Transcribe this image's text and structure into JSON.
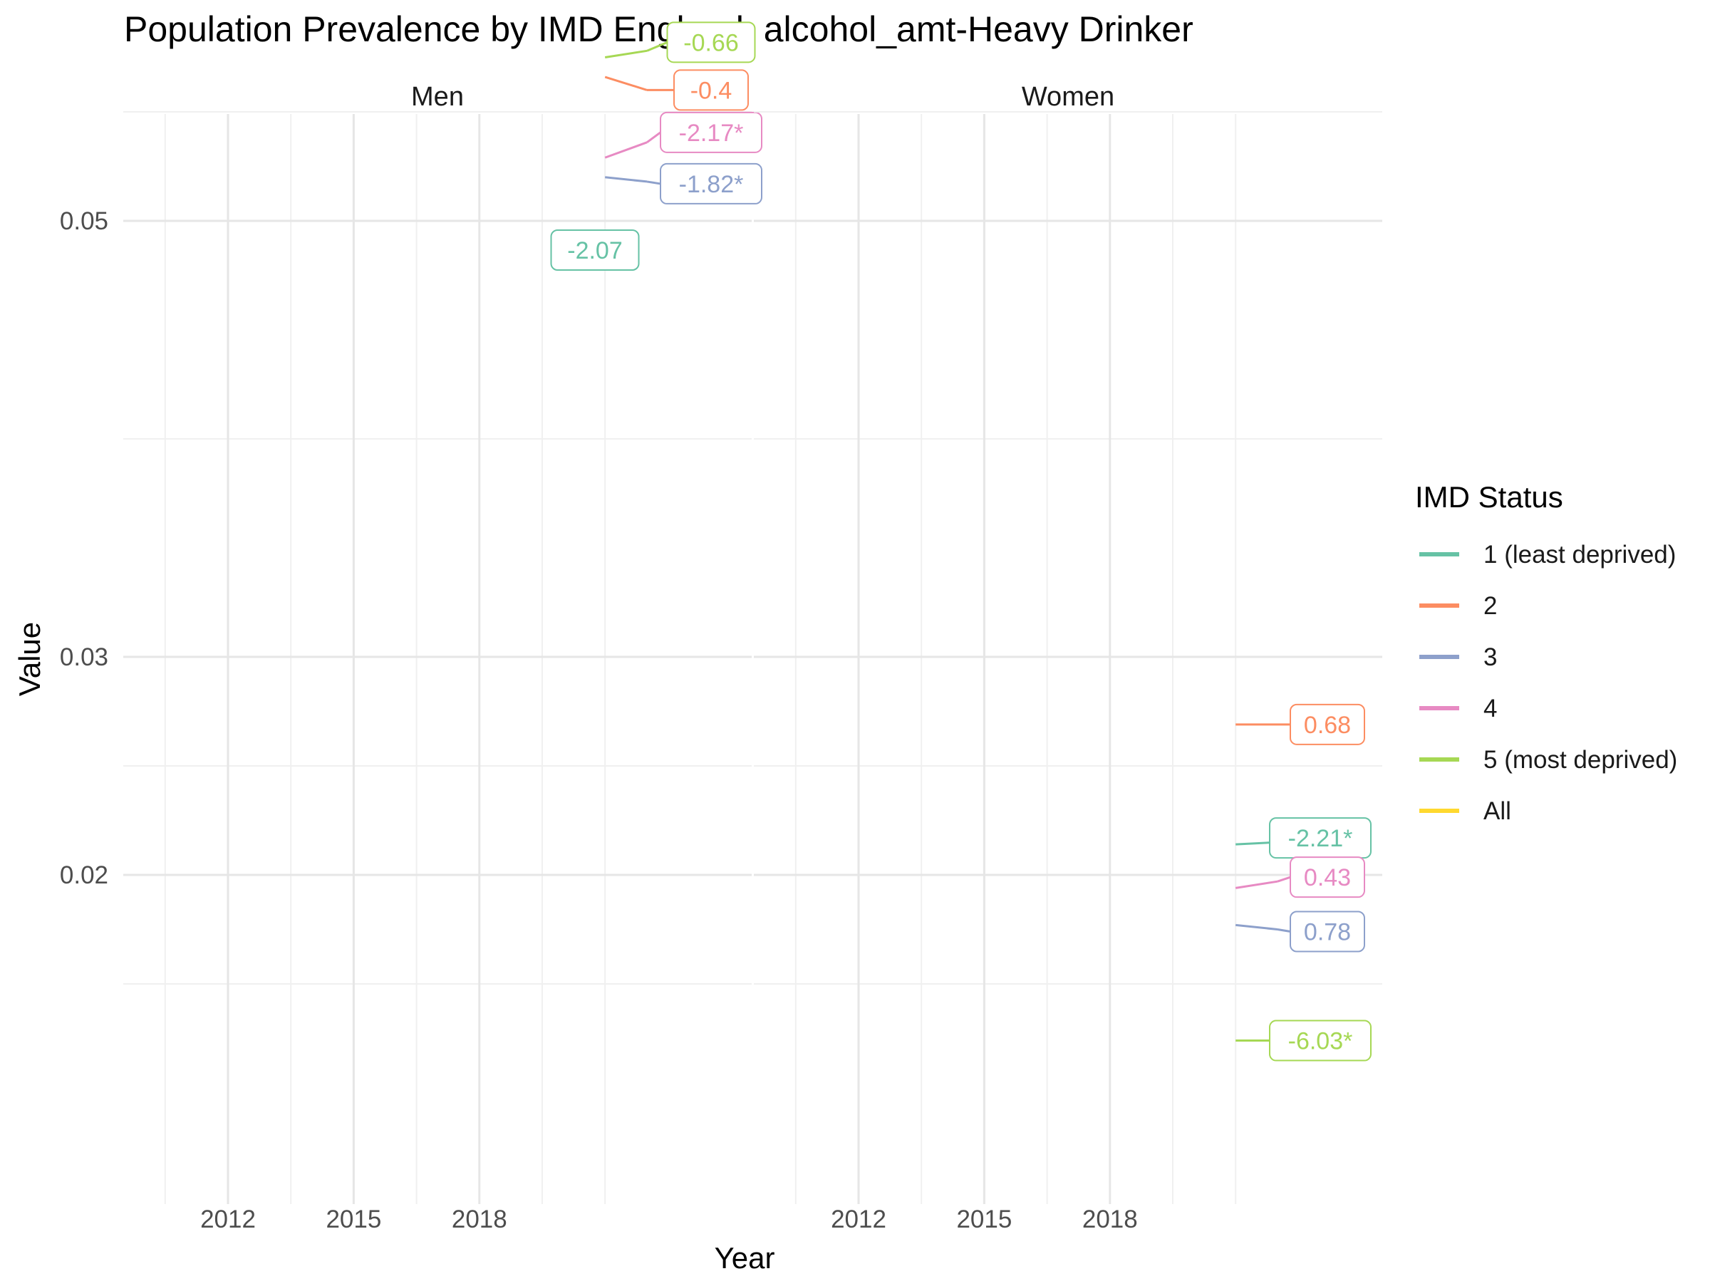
{
  "chart_data": {
    "type": "line",
    "title": "Population Prevalence by IMD England: alcohol_amt-Heavy Drinker",
    "xlabel": "Year",
    "ylabel": "Value",
    "x_ticks": [
      2012,
      2015,
      2018
    ],
    "y_ticks": [
      0.02,
      0.03,
      0.05
    ],
    "grid": true,
    "legend": {
      "title": "IMD Status",
      "placement": "right",
      "entries": [
        {
          "label": "1 (least deprived)",
          "color": "#66c2a5"
        },
        {
          "label": "2",
          "color": "#fc8d62"
        },
        {
          "label": "3",
          "color": "#8da0cb"
        },
        {
          "label": "4",
          "color": "#e78ac3"
        },
        {
          "label": "5 (most deprived)",
          "color": "#a6d854"
        },
        {
          "label": "All",
          "color": "#ffd92f"
        }
      ]
    },
    "facets": [
      {
        "name": "Men",
        "series": [
          {
            "name": "5 (most deprived)",
            "color": "#a6d854",
            "points": [
              [
                2021,
                0.0575
              ],
              [
                2022,
                0.0578
              ]
            ],
            "label": "-0.66"
          },
          {
            "name": "2",
            "color": "#fc8d62",
            "points": [
              [
                2021,
                0.0566
              ],
              [
                2022,
                0.056
              ]
            ],
            "label": "-0.4"
          },
          {
            "name": "1 (least deprived)",
            "color": "#66c2a5",
            "points": [],
            "label": "-2.07"
          },
          {
            "name": "4",
            "color": "#e78ac3",
            "points": [
              [
                2021,
                0.0529
              ],
              [
                2022,
                0.0536
              ]
            ],
            "label": "-2.17*"
          },
          {
            "name": "3",
            "color": "#8da0cb",
            "points": [
              [
                2021,
                0.052
              ],
              [
                2022,
                0.0518
              ]
            ],
            "label": "-1.82*"
          }
        ]
      },
      {
        "name": "Women",
        "series": [
          {
            "name": "2",
            "color": "#fc8d62",
            "points": [
              [
                2021,
                0.0269
              ],
              [
                2022,
                0.0269
              ]
            ],
            "label": "0.68"
          },
          {
            "name": "1 (least deprived)",
            "color": "#66c2a5",
            "points": [
              [
                2021,
                0.0214
              ],
              [
                2022,
                0.0215
              ]
            ],
            "label": "-2.21*"
          },
          {
            "name": "4",
            "color": "#e78ac3",
            "points": [
              [
                2021,
                0.0194
              ],
              [
                2022,
                0.0197
              ]
            ],
            "label": "0.43"
          },
          {
            "name": "3",
            "color": "#8da0cb",
            "points": [
              [
                2021,
                0.0177
              ],
              [
                2022,
                0.0175
              ]
            ],
            "label": "0.78"
          },
          {
            "name": "5 (most deprived)",
            "color": "#a6d854",
            "points": [
              [
                2021,
                0.0124
              ],
              [
                2022,
                0.0124
              ]
            ],
            "label": "-6.03*"
          }
        ]
      }
    ]
  }
}
